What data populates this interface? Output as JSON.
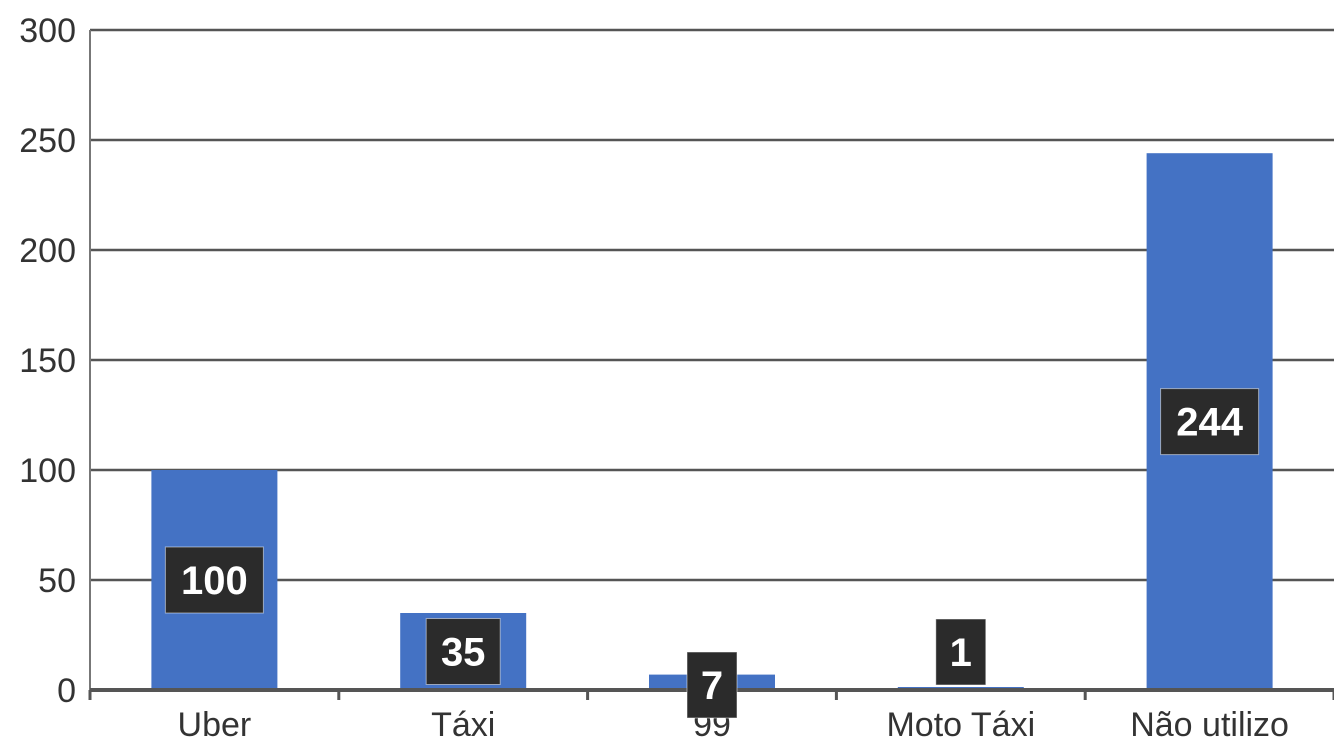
{
  "chart_data": {
    "type": "bar",
    "categories": [
      "Uber",
      "Táxi",
      "99",
      "Moto Táxi",
      "Não utilizo"
    ],
    "values": [
      100,
      35,
      7,
      1,
      244
    ],
    "data_labels": [
      "100",
      "35",
      "7",
      "1",
      "244"
    ],
    "y_ticks": [
      "0",
      "50",
      "100",
      "150",
      "200",
      "250",
      "300"
    ],
    "ylim": [
      0,
      300
    ],
    "grid": true,
    "legend": "none",
    "colors": {
      "bar": "#4472c4",
      "label_bg": "#2b2b2b",
      "label_text": "#ffffff",
      "grid": "#555555",
      "axis_text": "#333333"
    }
  }
}
